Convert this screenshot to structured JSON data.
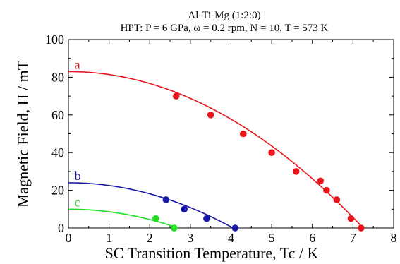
{
  "chart_data": {
    "type": "scatter",
    "title": "Al-Ti-Mg (1:2:0)",
    "subtitle": "HPT: P = 6 GPa, ω = 0.2 rpm, N = 10, T = 573 K",
    "xlabel": "SC Transition Temperature, Tc / K",
    "ylabel": "Magnetic Field, H / mT",
    "xlim": [
      0,
      8
    ],
    "ylim": [
      0,
      100
    ],
    "xticks": [
      "0",
      "1",
      "2",
      "3",
      "4",
      "5",
      "6",
      "7",
      "8"
    ],
    "yticks": [
      "0",
      "20",
      "40",
      "60",
      "80",
      "100"
    ],
    "grid": false,
    "series": [
      {
        "name": "a",
        "color": "#e8161b",
        "points": [
          [
            2.65,
            70
          ],
          [
            3.5,
            60
          ],
          [
            4.3,
            50
          ],
          [
            5.0,
            40
          ],
          [
            5.6,
            30
          ],
          [
            6.2,
            25
          ],
          [
            6.35,
            20
          ],
          [
            6.6,
            15
          ],
          [
            6.95,
            5
          ],
          [
            7.2,
            0
          ]
        ],
        "fit": {
          "H0": 83,
          "Tc0": 7.25
        }
      },
      {
        "name": "b",
        "color": "#1a1aa8",
        "points": [
          [
            2.4,
            15
          ],
          [
            2.85,
            10
          ],
          [
            3.4,
            5
          ],
          [
            4.1,
            0
          ]
        ],
        "fit": {
          "H0": 24,
          "Tc0": 4.05
        }
      },
      {
        "name": "c",
        "color": "#1ee01e",
        "points": [
          [
            2.15,
            5
          ],
          [
            2.6,
            0
          ]
        ],
        "fit": {
          "H0": 10,
          "Tc0": 2.7
        }
      }
    ]
  }
}
